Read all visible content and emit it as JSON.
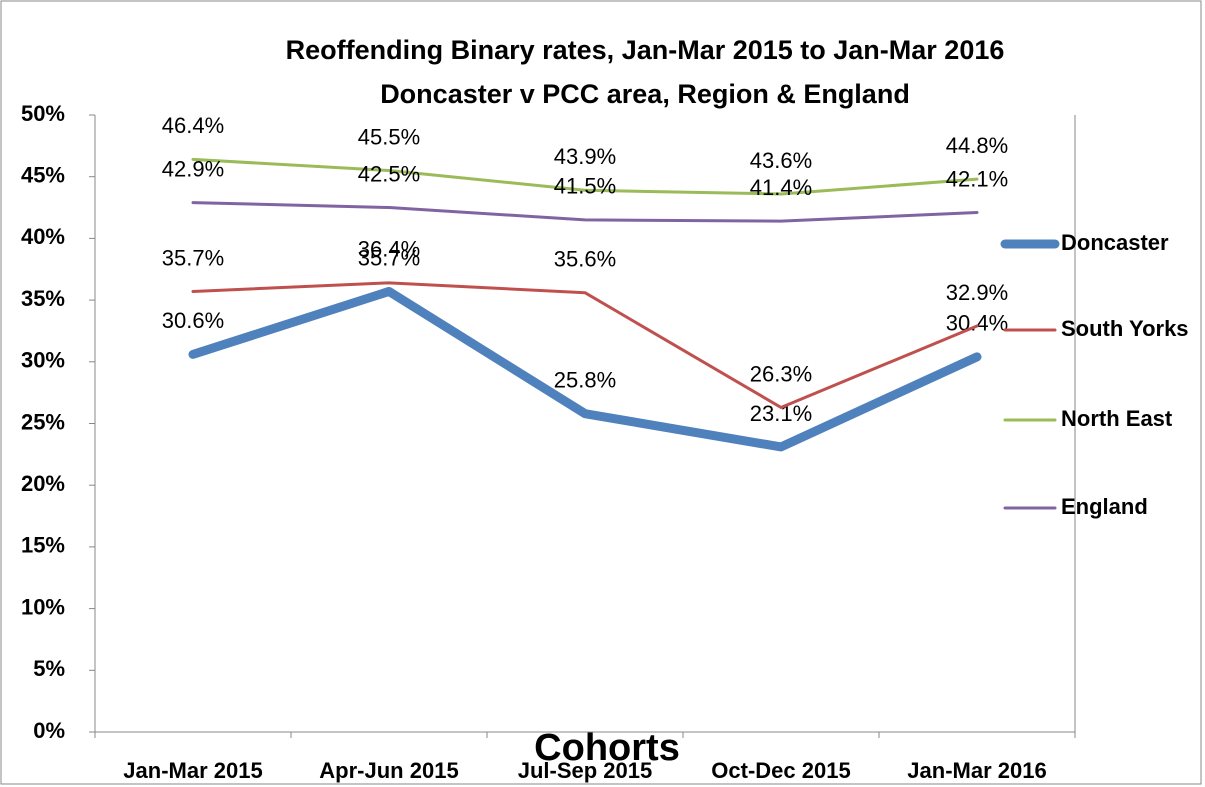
{
  "chart_data": {
    "type": "line",
    "title": "Reoffending Binary rates, Jan-Mar 2015 to Jan-Mar 2016",
    "subtitle": "Doncaster v PCC area, Region & England",
    "x_label": "Cohorts",
    "categories": [
      "Jan-Mar 2015",
      "Apr-Jun 2015",
      "Jul-Sep 2015",
      "Oct-Dec 2015",
      "Jan-Mar 2016"
    ],
    "ylim": [
      0,
      50
    ],
    "yticks": [
      {
        "value": 0,
        "label": "0%"
      },
      {
        "value": 5,
        "label": "5%"
      },
      {
        "value": 10,
        "label": "10%"
      },
      {
        "value": 15,
        "label": "15%"
      },
      {
        "value": 20,
        "label": "20%"
      },
      {
        "value": 25,
        "label": "25%"
      },
      {
        "value": 30,
        "label": "30%"
      },
      {
        "value": 35,
        "label": "35%"
      },
      {
        "value": 40,
        "label": "40%"
      },
      {
        "value": 45,
        "label": "45%"
      },
      {
        "value": 50,
        "label": "50%"
      }
    ],
    "grid": false,
    "legend": "right",
    "series": [
      {
        "name": "Doncaster",
        "color": "#4f81bd",
        "values": [
          30.6,
          35.7,
          25.8,
          23.1,
          30.4
        ],
        "value_labels": [
          "30.6%",
          "35.7%",
          "25.8%",
          "23.1%",
          "30.4%"
        ]
      },
      {
        "name": "South Yorks",
        "color": "#c0504d",
        "values": [
          35.7,
          36.4,
          35.6,
          26.3,
          32.9
        ],
        "value_labels": [
          "35.7%",
          "36.4%",
          "35.6%",
          "26.3%",
          "32.9%"
        ]
      },
      {
        "name": "North East",
        "color": "#9bbb59",
        "values": [
          46.4,
          45.5,
          43.9,
          43.6,
          44.8
        ],
        "value_labels": [
          "46.4%",
          "45.5%",
          "43.9%",
          "43.6%",
          "44.8%"
        ]
      },
      {
        "name": "England",
        "color": "#8064a2",
        "values": [
          42.9,
          42.5,
          41.5,
          41.4,
          42.1
        ],
        "value_labels": [
          "42.9%",
          "42.5%",
          "41.5%",
          "41.4%",
          "42.1%"
        ]
      }
    ]
  }
}
